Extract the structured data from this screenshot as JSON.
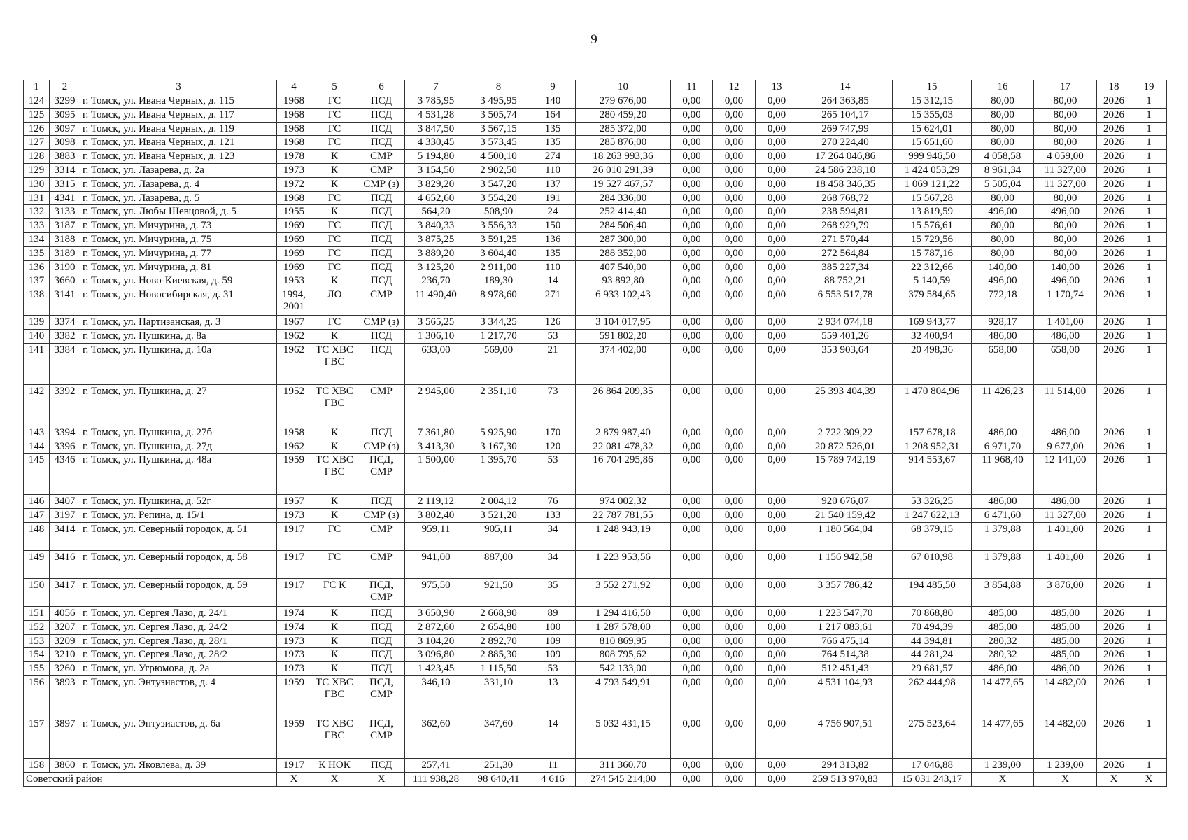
{
  "page_number": "9",
  "table": {
    "headers": [
      "1",
      "2",
      "3",
      "4",
      "5",
      "6",
      "7",
      "8",
      "9",
      "10",
      "11",
      "12",
      "13",
      "14",
      "15",
      "16",
      "17",
      "18",
      "19"
    ],
    "rows": [
      [
        "124",
        "3299",
        "г. Томск, ул. Ивана Черных, д. 115",
        "1968",
        "ГС",
        "ПСД",
        "3 785,95",
        "3 495,95",
        "140",
        "279 676,00",
        "0,00",
        "0,00",
        "0,00",
        "264 363,85",
        "15 312,15",
        "80,00",
        "80,00",
        "2026",
        "1"
      ],
      [
        "125",
        "3095",
        "г. Томск, ул. Ивана Черных, д. 117",
        "1968",
        "ГС",
        "ПСД",
        "4 531,28",
        "3 505,74",
        "164",
        "280 459,20",
        "0,00",
        "0,00",
        "0,00",
        "265 104,17",
        "15 355,03",
        "80,00",
        "80,00",
        "2026",
        "1"
      ],
      [
        "126",
        "3097",
        "г. Томск, ул. Ивана Черных, д. 119",
        "1968",
        "ГС",
        "ПСД",
        "3 847,50",
        "3 567,15",
        "135",
        "285 372,00",
        "0,00",
        "0,00",
        "0,00",
        "269 747,99",
        "15 624,01",
        "80,00",
        "80,00",
        "2026",
        "1"
      ],
      [
        "127",
        "3098",
        "г. Томск, ул. Ивана Черных, д. 121",
        "1968",
        "ГС",
        "ПСД",
        "4 330,45",
        "3 573,45",
        "135",
        "285 876,00",
        "0,00",
        "0,00",
        "0,00",
        "270 224,40",
        "15 651,60",
        "80,00",
        "80,00",
        "2026",
        "1"
      ],
      [
        "128",
        "3883",
        "г. Томск, ул. Ивана Черных, д. 123",
        "1978",
        "К",
        "СМР",
        "5 194,80",
        "4 500,10",
        "274",
        "18 263 993,36",
        "0,00",
        "0,00",
        "0,00",
        "17 264 046,86",
        "999 946,50",
        "4 058,58",
        "4 059,00",
        "2026",
        "1"
      ],
      [
        "129",
        "3314",
        "г. Томск, ул. Лазарева, д. 2а",
        "1973",
        "К",
        "СМР",
        "3 154,50",
        "2 902,50",
        "110",
        "26 010 291,39",
        "0,00",
        "0,00",
        "0,00",
        "24 586 238,10",
        "1 424 053,29",
        "8 961,34",
        "11 327,00",
        "2026",
        "1"
      ],
      [
        "130",
        "3315",
        "г. Томск, ул. Лазарева, д. 4",
        "1972",
        "К",
        "СМР (з)",
        "3 829,20",
        "3 547,20",
        "137",
        "19 527 467,57",
        "0,00",
        "0,00",
        "0,00",
        "18 458 346,35",
        "1 069 121,22",
        "5 505,04",
        "11 327,00",
        "2026",
        "1"
      ],
      [
        "131",
        "4341",
        "г. Томск, ул. Лазарева, д. 5",
        "1968",
        "ГС",
        "ПСД",
        "4 652,60",
        "3 554,20",
        "191",
        "284 336,00",
        "0,00",
        "0,00",
        "0,00",
        "268 768,72",
        "15 567,28",
        "80,00",
        "80,00",
        "2026",
        "1"
      ],
      [
        "132",
        "3133",
        "г. Томск, ул. Любы Шевцовой, д. 5",
        "1955",
        "К",
        "ПСД",
        "564,20",
        "508,90",
        "24",
        "252 414,40",
        "0,00",
        "0,00",
        "0,00",
        "238 594,81",
        "13 819,59",
        "496,00",
        "496,00",
        "2026",
        "1"
      ],
      [
        "133",
        "3187",
        "г. Томск, ул. Мичурина, д. 73",
        "1969",
        "ГС",
        "ПСД",
        "3 840,33",
        "3 556,33",
        "150",
        "284 506,40",
        "0,00",
        "0,00",
        "0,00",
        "268 929,79",
        "15 576,61",
        "80,00",
        "80,00",
        "2026",
        "1"
      ],
      [
        "134",
        "3188",
        "г. Томск, ул. Мичурина, д. 75",
        "1969",
        "ГС",
        "ПСД",
        "3 875,25",
        "3 591,25",
        "136",
        "287 300,00",
        "0,00",
        "0,00",
        "0,00",
        "271 570,44",
        "15 729,56",
        "80,00",
        "80,00",
        "2026",
        "1"
      ],
      [
        "135",
        "3189",
        "г. Томск, ул. Мичурина, д. 77",
        "1969",
        "ГС",
        "ПСД",
        "3 889,20",
        "3 604,40",
        "135",
        "288 352,00",
        "0,00",
        "0,00",
        "0,00",
        "272 564,84",
        "15 787,16",
        "80,00",
        "80,00",
        "2026",
        "1"
      ],
      [
        "136",
        "3190",
        "г. Томск, ул. Мичурина, д. 81",
        "1969",
        "ГС",
        "ПСД",
        "3 125,20",
        "2 911,00",
        "110",
        "407 540,00",
        "0,00",
        "0,00",
        "0,00",
        "385 227,34",
        "22 312,66",
        "140,00",
        "140,00",
        "2026",
        "1"
      ],
      [
        "137",
        "3660",
        "г. Томск, ул. Ново-Киевская, д. 59",
        "1953",
        "К",
        "ПСД",
        "236,70",
        "189,30",
        "14",
        "93 892,80",
        "0,00",
        "0,00",
        "0,00",
        "88 752,21",
        "5 140,59",
        "496,00",
        "496,00",
        "2026",
        "1"
      ],
      [
        "138",
        "3141",
        "г. Томск, ул. Новосибирская, д. 31",
        "1994, 2001",
        "ЛО",
        "СМР",
        "11 490,40",
        "8 978,60",
        "271",
        "6 933 102,43",
        "0,00",
        "0,00",
        "0,00",
        "6 553 517,78",
        "379 584,65",
        "772,18",
        "1 170,74",
        "2026",
        "1"
      ],
      [
        "139",
        "3374",
        "г. Томск, ул. Партизанская, д. 3",
        "1967",
        "ГС",
        "СМР (з)",
        "3 565,25",
        "3 344,25",
        "126",
        "3 104 017,95",
        "0,00",
        "0,00",
        "0,00",
        "2 934 074,18",
        "169 943,77",
        "928,17",
        "1 401,00",
        "2026",
        "1"
      ],
      [
        "140",
        "3382",
        "г. Томск, ул. Пушкина, д. 8а",
        "1962",
        "К",
        "ПСД",
        "1 306,10",
        "1 217,70",
        "53",
        "591 802,20",
        "0,00",
        "0,00",
        "0,00",
        "559 401,26",
        "32 400,94",
        "486,00",
        "486,00",
        "2026",
        "1"
      ],
      [
        "141",
        "3384",
        "г. Томск, ул. Пушкина, д. 10а",
        "1962",
        "ТС ХВС ГВС",
        "ПСД",
        "633,00",
        "569,00",
        "21",
        "374 402,00",
        "0,00",
        "0,00",
        "0,00",
        "353 903,64",
        "20 498,36",
        "658,00",
        "658,00",
        "2026",
        "1"
      ],
      [
        "142",
        "3392",
        "г. Томск, ул. Пушкина, д. 27",
        "1952",
        "ТС ХВС ГВС",
        "СМР",
        "2 945,00",
        "2 351,10",
        "73",
        "26 864 209,35",
        "0,00",
        "0,00",
        "0,00",
        "25 393 404,39",
        "1 470 804,96",
        "11 426,23",
        "11 514,00",
        "2026",
        "1"
      ],
      [
        "143",
        "3394",
        "г. Томск, ул. Пушкина, д. 27б",
        "1958",
        "К",
        "ПСД",
        "7 361,80",
        "5 925,90",
        "170",
        "2 879 987,40",
        "0,00",
        "0,00",
        "0,00",
        "2 722 309,22",
        "157 678,18",
        "486,00",
        "486,00",
        "2026",
        "1"
      ],
      [
        "144",
        "3396",
        "г. Томск, ул. Пушкина, д. 27д",
        "1962",
        "К",
        "СМР (з)",
        "3 413,30",
        "3 167,30",
        "120",
        "22 081 478,32",
        "0,00",
        "0,00",
        "0,00",
        "20 872 526,01",
        "1 208 952,31",
        "6 971,70",
        "9 677,00",
        "2026",
        "1"
      ],
      [
        "145",
        "4346",
        "г. Томск, ул. Пушкина, д. 48а",
        "1959",
        "ТС ХВС ГВС",
        "ПСД, СМР",
        "1 500,00",
        "1 395,70",
        "53",
        "16 704 295,86",
        "0,00",
        "0,00",
        "0,00",
        "15 789 742,19",
        "914 553,67",
        "11 968,40",
        "12 141,00",
        "2026",
        "1"
      ],
      [
        "146",
        "3407",
        "г. Томск, ул. Пушкина, д. 52г",
        "1957",
        "К",
        "ПСД",
        "2 119,12",
        "2 004,12",
        "76",
        "974 002,32",
        "0,00",
        "0,00",
        "0,00",
        "920 676,07",
        "53 326,25",
        "486,00",
        "486,00",
        "2026",
        "1"
      ],
      [
        "147",
        "3197",
        "г. Томск, ул. Репина, д. 15/1",
        "1973",
        "К",
        "СМР (з)",
        "3 802,40",
        "3 521,20",
        "133",
        "22 787 781,55",
        "0,00",
        "0,00",
        "0,00",
        "21 540 159,42",
        "1 247 622,13",
        "6 471,60",
        "11 327,00",
        "2026",
        "1"
      ],
      [
        "148",
        "3414",
        "г. Томск, ул. Северный городок, д. 51",
        "1917",
        "ГС",
        "СМР",
        "959,11",
        "905,11",
        "34",
        "1 248 943,19",
        "0,00",
        "0,00",
        "0,00",
        "1 180 564,04",
        "68 379,15",
        "1 379,88",
        "1 401,00",
        "2026",
        "1"
      ],
      [
        "149",
        "3416",
        "г. Томск, ул. Северный городок, д. 58",
        "1917",
        "ГС",
        "СМР",
        "941,00",
        "887,00",
        "34",
        "1 223 953,56",
        "0,00",
        "0,00",
        "0,00",
        "1 156 942,58",
        "67 010,98",
        "1 379,88",
        "1 401,00",
        "2026",
        "1"
      ],
      [
        "150",
        "3417",
        "г. Томск, ул. Северный городок, д. 59",
        "1917",
        "ГС К",
        "ПСД, СМР",
        "975,50",
        "921,50",
        "35",
        "3 552 271,92",
        "0,00",
        "0,00",
        "0,00",
        "3 357 786,42",
        "194 485,50",
        "3 854,88",
        "3 876,00",
        "2026",
        "1"
      ],
      [
        "151",
        "4056",
        "г. Томск, ул. Сергея Лазо, д. 24/1",
        "1974",
        "К",
        "ПСД",
        "3 650,90",
        "2 668,90",
        "89",
        "1 294 416,50",
        "0,00",
        "0,00",
        "0,00",
        "1 223 547,70",
        "70 868,80",
        "485,00",
        "485,00",
        "2026",
        "1"
      ],
      [
        "152",
        "3207",
        "г. Томск, ул. Сергея Лазо, д. 24/2",
        "1974",
        "К",
        "ПСД",
        "2 872,60",
        "2 654,80",
        "100",
        "1 287 578,00",
        "0,00",
        "0,00",
        "0,00",
        "1 217 083,61",
        "70 494,39",
        "485,00",
        "485,00",
        "2026",
        "1"
      ],
      [
        "153",
        "3209",
        "г. Томск, ул. Сергея Лазо, д. 28/1",
        "1973",
        "К",
        "ПСД",
        "3 104,20",
        "2 892,70",
        "109",
        "810 869,95",
        "0,00",
        "0,00",
        "0,00",
        "766 475,14",
        "44 394,81",
        "280,32",
        "485,00",
        "2026",
        "1"
      ],
      [
        "154",
        "3210",
        "г. Томск, ул. Сергея Лазо, д. 28/2",
        "1973",
        "К",
        "ПСД",
        "3 096,80",
        "2 885,30",
        "109",
        "808 795,62",
        "0,00",
        "0,00",
        "0,00",
        "764 514,38",
        "44 281,24",
        "280,32",
        "485,00",
        "2026",
        "1"
      ],
      [
        "155",
        "3260",
        "г. Томск, ул. Угрюмова, д. 2а",
        "1973",
        "К",
        "ПСД",
        "1 423,45",
        "1 115,50",
        "53",
        "542 133,00",
        "0,00",
        "0,00",
        "0,00",
        "512 451,43",
        "29 681,57",
        "486,00",
        "486,00",
        "2026",
        "1"
      ],
      [
        "156",
        "3893",
        "г. Томск, ул. Энтузиастов, д. 4",
        "1959",
        "ТС ХВС ГВС",
        "ПСД, СМР",
        "346,10",
        "331,10",
        "13",
        "4 793 549,91",
        "0,00",
        "0,00",
        "0,00",
        "4 531 104,93",
        "262 444,98",
        "14 477,65",
        "14 482,00",
        "2026",
        "1"
      ],
      [
        "157",
        "3897",
        "г. Томск, ул. Энтузиастов, д. 6а",
        "1959",
        "ТС ХВС ГВС",
        "ПСД, СМР",
        "362,60",
        "347,60",
        "14",
        "5 032 431,15",
        "0,00",
        "0,00",
        "0,00",
        "4 756 907,51",
        "275 523,64",
        "14 477,65",
        "14 482,00",
        "2026",
        "1"
      ],
      [
        "158",
        "3860",
        "г. Томск, ул. Яковлева, д. 39",
        "1917",
        "К НОК",
        "ПСД",
        "257,41",
        "251,30",
        "11",
        "311 360,70",
        "0,00",
        "0,00",
        "0,00",
        "294 313,82",
        "17 046,88",
        "1 239,00",
        "1 239,00",
        "2026",
        "1"
      ]
    ],
    "total": {
      "label": "Советский район",
      "values": [
        "X",
        "X",
        "X",
        "111 938,28",
        "98 640,41",
        "4 616",
        "274 545 214,00",
        "0,00",
        "0,00",
        "0,00",
        "259 513 970,83",
        "15 031 243,17",
        "X",
        "X",
        "X",
        "X"
      ]
    }
  }
}
